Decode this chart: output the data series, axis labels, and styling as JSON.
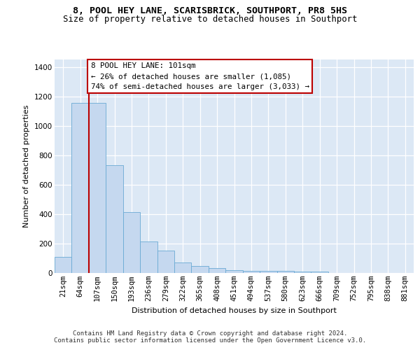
{
  "title_line1": "8, POOL HEY LANE, SCARISBRICK, SOUTHPORT, PR8 5HS",
  "title_line2": "Size of property relative to detached houses in Southport",
  "xlabel": "Distribution of detached houses by size in Southport",
  "ylabel": "Number of detached properties",
  "categories": [
    "21sqm",
    "64sqm",
    "107sqm",
    "150sqm",
    "193sqm",
    "236sqm",
    "279sqm",
    "322sqm",
    "365sqm",
    "408sqm",
    "451sqm",
    "494sqm",
    "537sqm",
    "580sqm",
    "623sqm",
    "666sqm",
    "709sqm",
    "752sqm",
    "795sqm",
    "838sqm",
    "881sqm"
  ],
  "bar_values": [
    108,
    1155,
    1155,
    730,
    415,
    215,
    150,
    70,
    47,
    33,
    20,
    15,
    15,
    15,
    10,
    10,
    0,
    0,
    0,
    0,
    0
  ],
  "bar_color": "#c5d8ef",
  "bar_edgecolor": "#6aaad4",
  "background_color": "#dce8f5",
  "vline_position": 1.5,
  "vline_color": "#bb0000",
  "annotation_line1": "8 POOL HEY LANE: 101sqm",
  "annotation_line2": "← 26% of detached houses are smaller (1,085)",
  "annotation_line3": "74% of semi-detached houses are larger (3,033) →",
  "annotation_box_edgecolor": "#bb0000",
  "ylim": [
    0,
    1450
  ],
  "yticks": [
    0,
    200,
    400,
    600,
    800,
    1000,
    1200,
    1400
  ],
  "footer_line1": "Contains HM Land Registry data © Crown copyright and database right 2024.",
  "footer_line2": "Contains public sector information licensed under the Open Government Licence v3.0.",
  "title_fontsize": 9.5,
  "subtitle_fontsize": 8.8,
  "axis_label_fontsize": 8.0,
  "tick_fontsize": 7.5,
  "annotation_fontsize": 7.8,
  "footer_fontsize": 6.5
}
